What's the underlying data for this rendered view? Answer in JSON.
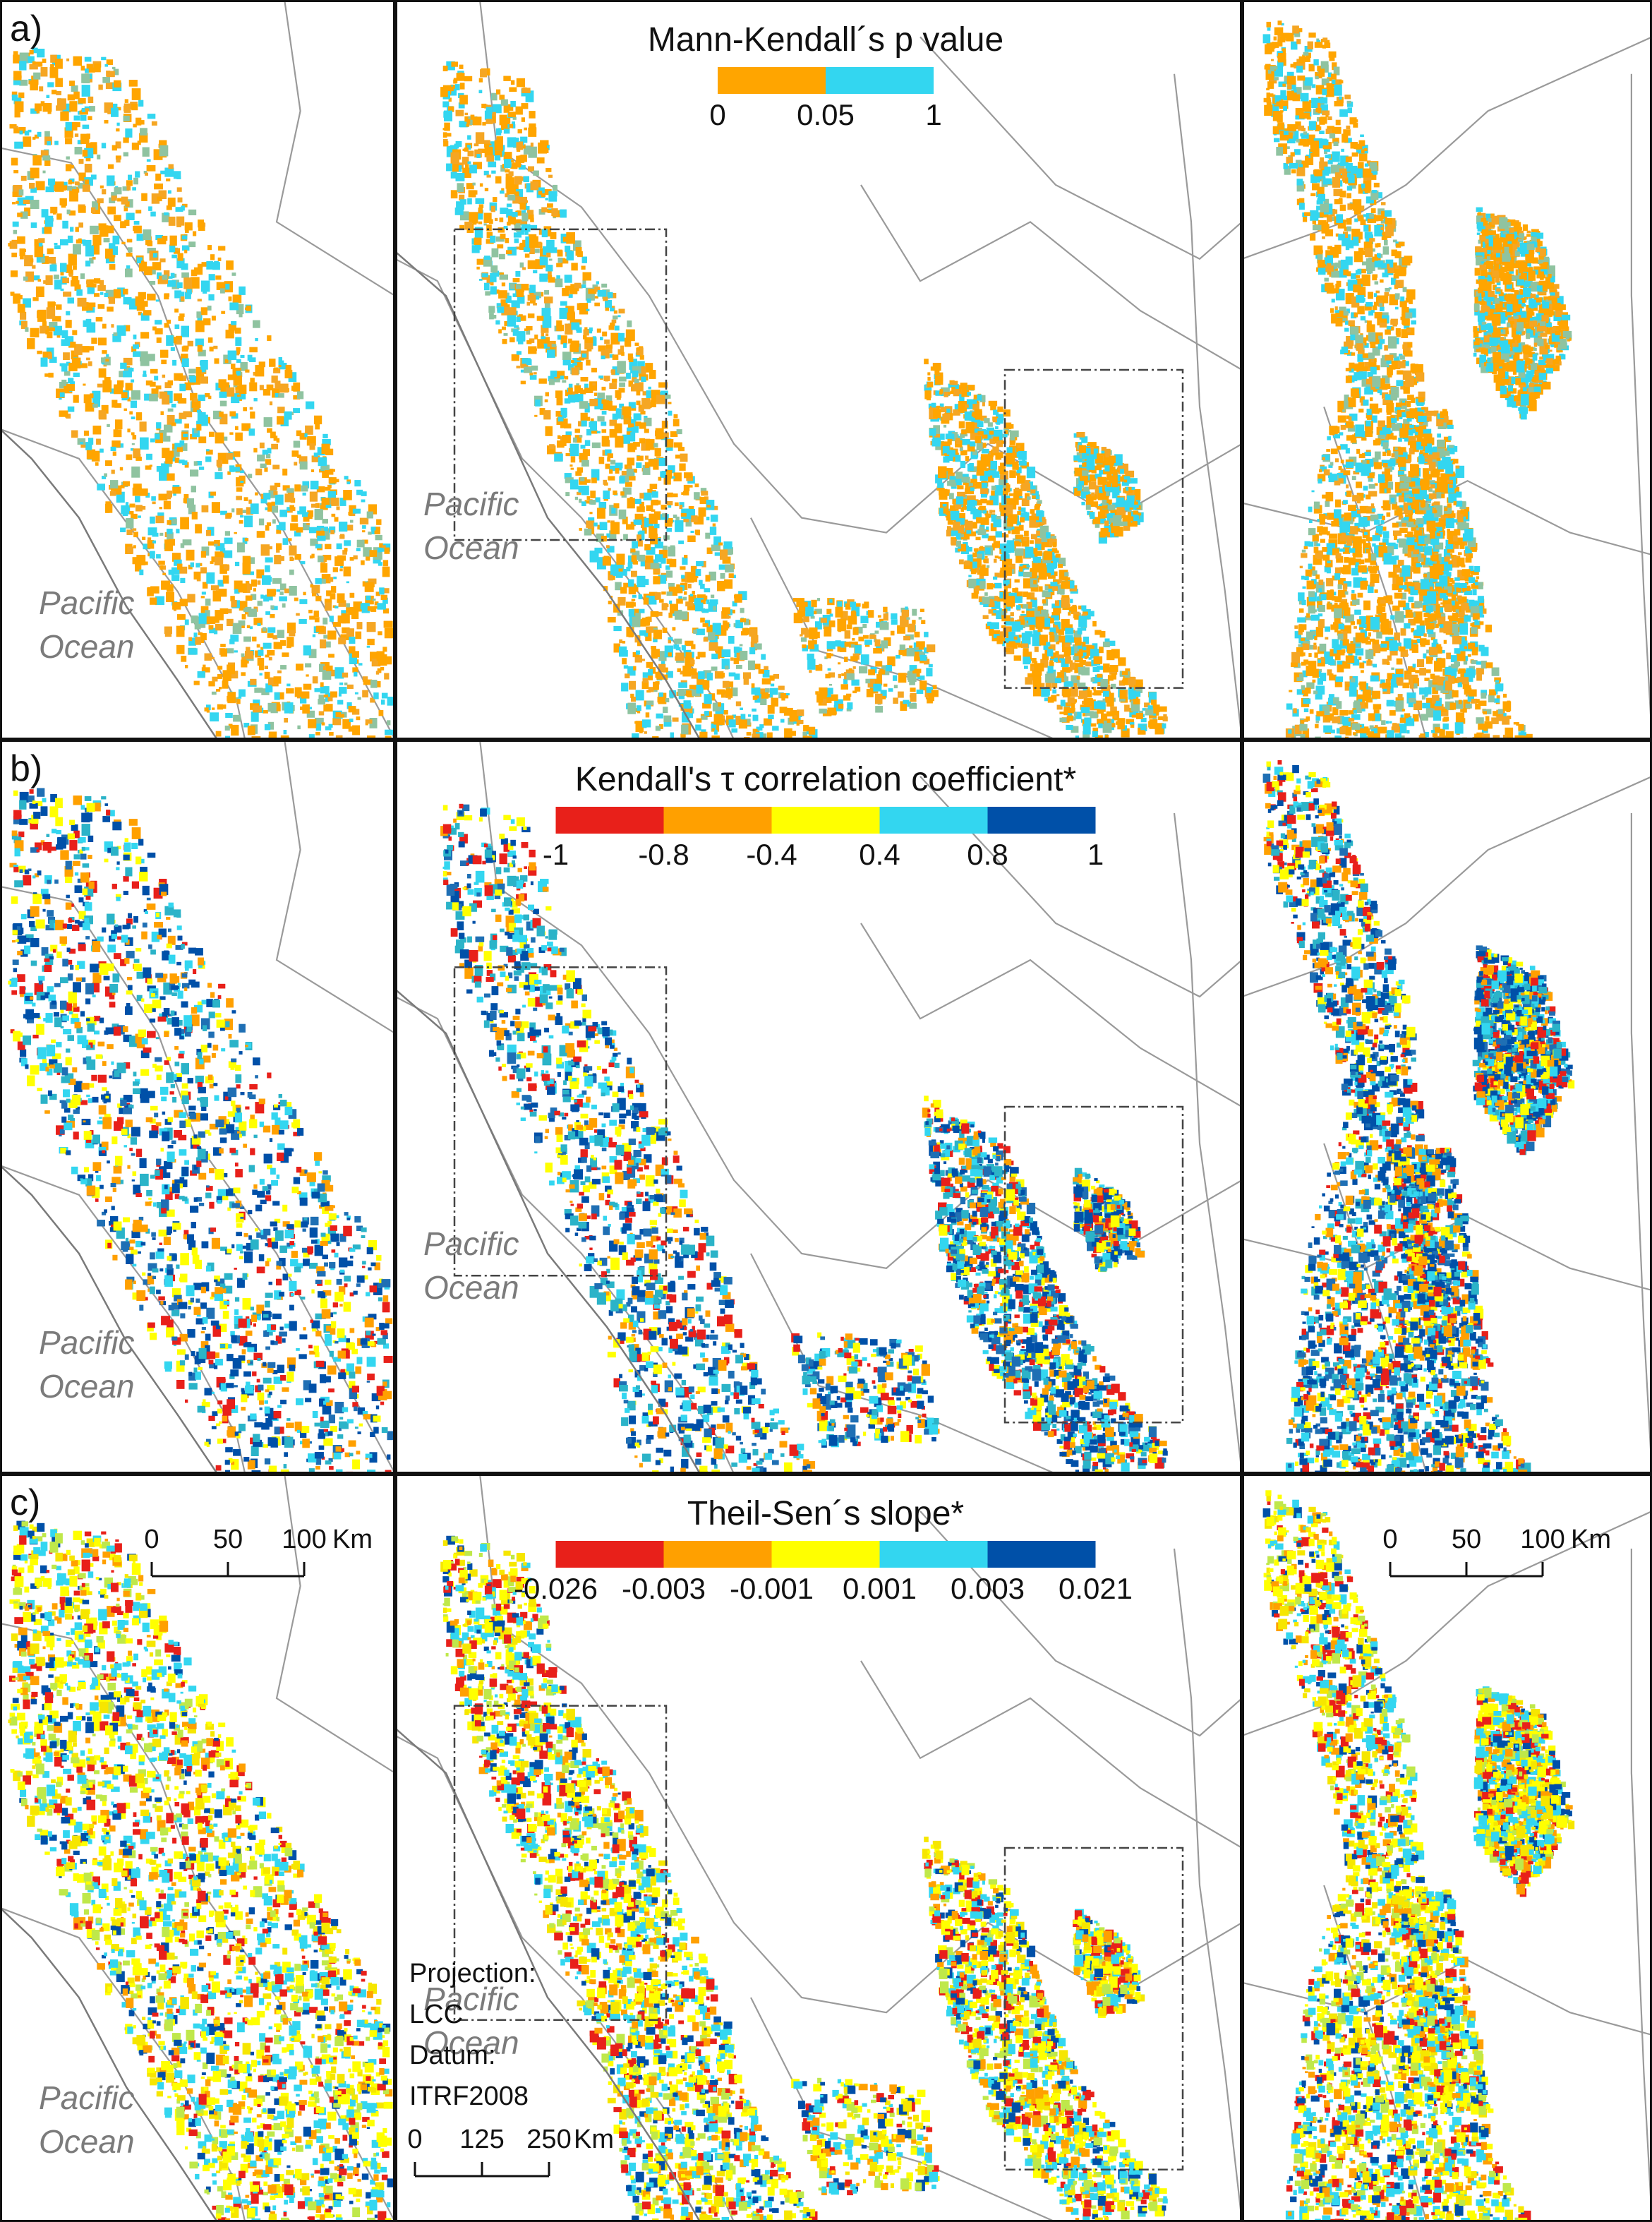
{
  "rows": [
    {
      "label": "a)",
      "legend": {
        "title": "Mann-Kendall´s p value",
        "colors": [
          "#FFA500",
          "#33D6F0"
        ],
        "ticks": [
          "0",
          "0.05",
          "1"
        ]
      },
      "palette": [
        "#FFA500",
        "#FFA500",
        "#FFA500",
        "#F5A623",
        "#8FC3A0",
        "#33D6F0",
        "#33D6F0"
      ]
    },
    {
      "label": "b)",
      "legend": {
        "title": "Kendall's τ correlation coefficient*",
        "colors": [
          "#E8201A",
          "#FFA000",
          "#FFFF00",
          "#33D6F0",
          "#0050A8"
        ],
        "ticks": [
          "-1",
          "-0.8",
          "-0.4",
          "0.4",
          "0.8",
          "1"
        ]
      },
      "palette": [
        "#E8201A",
        "#FFA000",
        "#FFFF00",
        "#33D6F0",
        "#0050A8",
        "#0050A8",
        "#1F6FB4",
        "#2BB3C8"
      ]
    },
    {
      "label": "c)",
      "legend": {
        "title": "Theil-Sen´s slope*",
        "colors": [
          "#E8201A",
          "#FFA000",
          "#FFFF00",
          "#33D6F0",
          "#0050A8"
        ],
        "ticks": [
          "-0.026",
          "-0.003",
          "-0.001",
          "0.001",
          "0.003",
          "0.021"
        ]
      },
      "palette": [
        "#FFFF00",
        "#FFFF00",
        "#F6E600",
        "#BFE84A",
        "#33D6F0",
        "#33D6F0",
        "#FFA000",
        "#0050A8",
        "#E8201A"
      ]
    }
  ],
  "ocean_label": [
    "Pacific",
    "Ocean"
  ],
  "inset_scale": {
    "ticks": [
      "0",
      "50",
      "100"
    ],
    "unit": "Km"
  },
  "main_scale": {
    "ticks": [
      "0",
      "125",
      "250"
    ],
    "unit": "Km"
  },
  "projection": [
    "Projection:",
    "LCC",
    "Datum:",
    "ITRF2008"
  ]
}
